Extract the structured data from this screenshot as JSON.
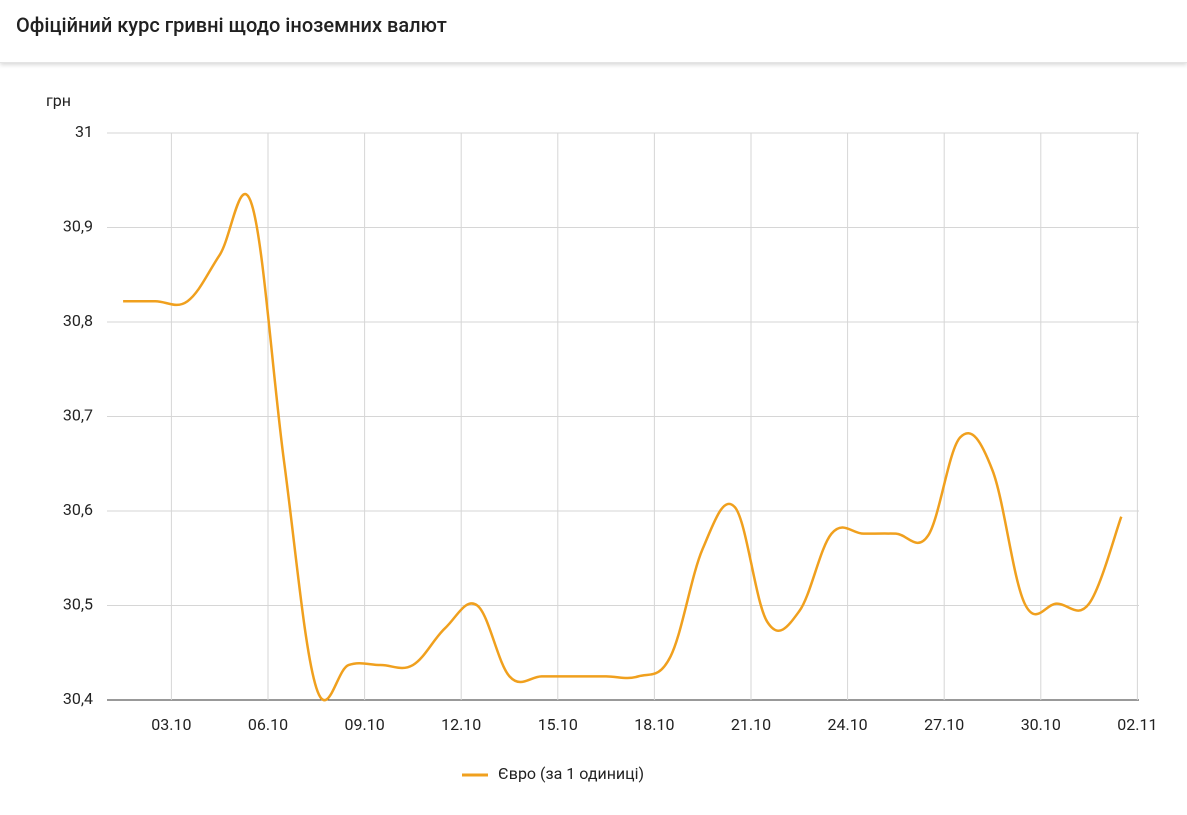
{
  "chart_data": {
    "type": "line",
    "title": "Офіційний курс гривні щодо іноземних валют",
    "y_label": "грн",
    "x": [
      1.5,
      2.5,
      3.5,
      4.5,
      5.5,
      6.5,
      7.5,
      8.5,
      9.5,
      10.5,
      11.5,
      12.5,
      13.5,
      14.5,
      15.5,
      16.5,
      17.5,
      18.5,
      19.5,
      20.5,
      21.5,
      22.5,
      23.5,
      24.5,
      25.5,
      26.5,
      27.5,
      28.5,
      29.5,
      30.5,
      31.5,
      32.5
    ],
    "series": [
      {
        "name": "Євро (за 1 одиниці)",
        "color": "#f0a01e",
        "values": [
          30.822,
          30.822,
          30.822,
          30.871,
          30.924,
          30.652,
          30.413,
          30.437,
          30.437,
          30.437,
          30.476,
          30.5,
          30.425,
          30.425,
          30.425,
          30.425,
          30.425,
          30.446,
          30.56,
          30.604,
          30.483,
          30.494,
          30.576,
          30.576,
          30.576,
          30.574,
          30.678,
          30.643,
          30.502,
          30.502,
          30.502,
          30.594
        ]
      }
    ],
    "xlim": [
      1,
      33.05
    ],
    "xticks": [
      {
        "value": 3,
        "label": "03.10"
      },
      {
        "value": 6,
        "label": "06.10"
      },
      {
        "value": 9,
        "label": "09.10"
      },
      {
        "value": 12,
        "label": "12.10"
      },
      {
        "value": 15,
        "label": "15.10"
      },
      {
        "value": 18,
        "label": "18.10"
      },
      {
        "value": 21,
        "label": "21.10"
      },
      {
        "value": 24,
        "label": "24.10"
      },
      {
        "value": 27,
        "label": "27.10"
      },
      {
        "value": 30,
        "label": "30.10"
      },
      {
        "value": 33,
        "label": "02.11"
      }
    ],
    "ylim": [
      30.4,
      31
    ],
    "yticks": [
      {
        "value": 30.4,
        "label": "30,4"
      },
      {
        "value": 30.5,
        "label": "30,5"
      },
      {
        "value": 30.6,
        "label": "30,6"
      },
      {
        "value": 30.7,
        "label": "30,7"
      },
      {
        "value": 30.8,
        "label": "30,8"
      },
      {
        "value": 30.9,
        "label": "30,9"
      },
      31
    ],
    "grid": true
  }
}
